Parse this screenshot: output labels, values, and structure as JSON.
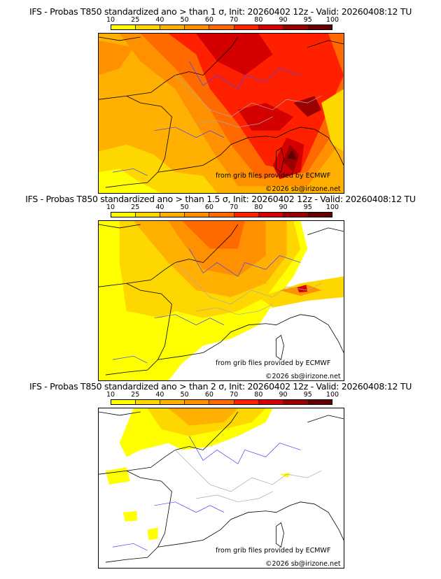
{
  "panels": [
    {
      "title": "IFS - Probas T850  standardized ano > than 1 σ, Init: 20260402 12z - Valid: 20260408:12 TU"
    },
    {
      "title": "IFS - Probas T850  standardized ano > than 1.5 σ, Init: 20260402 12z - Valid: 20260408:12 TU"
    },
    {
      "title": "IFS - Probas T850  standardized ano > than 2 σ, Init: 20260402 12z - Valid: 20260408:12 TU"
    }
  ],
  "colorbar": {
    "ticks": [
      "10",
      "25",
      "40",
      "50",
      "60",
      "70",
      "80",
      "90",
      "95",
      "100"
    ],
    "colors": [
      "#ffff00",
      "#ffd700",
      "#ffb000",
      "#ff9000",
      "#ff6a00",
      "#ff2000",
      "#d40000",
      "#9a0000",
      "#650000"
    ]
  },
  "credits": {
    "source": "from grib files provided by ECMWF",
    "copyright": "©2026 sb@irizone.net"
  }
}
